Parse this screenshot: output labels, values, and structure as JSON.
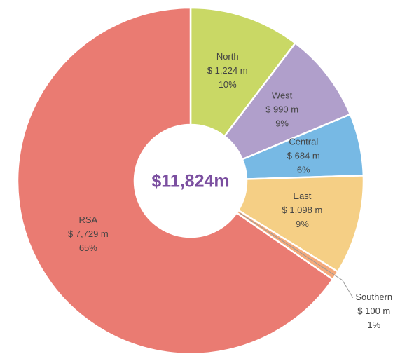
{
  "chart_data": {
    "type": "donut",
    "center_label": "$11,824m",
    "categories": [
      "North",
      "West",
      "Central",
      "East",
      "Southern",
      "RSA"
    ],
    "values": [
      1224,
      990,
      684,
      1098,
      100,
      7729
    ],
    "value_labels": [
      "$ 1,224 m",
      "$ 990 m",
      "$ 684 m",
      "$ 1,098 m",
      "$ 100 m",
      "$ 7,729 m"
    ],
    "percentage_labels": [
      "10%",
      "9%",
      "6%",
      "9%",
      "1%",
      "65%"
    ],
    "colors": [
      "#c9d865",
      "#b09fcb",
      "#77b9e4",
      "#f5cf85",
      "#f4a97a",
      "#ea7b72"
    ]
  }
}
